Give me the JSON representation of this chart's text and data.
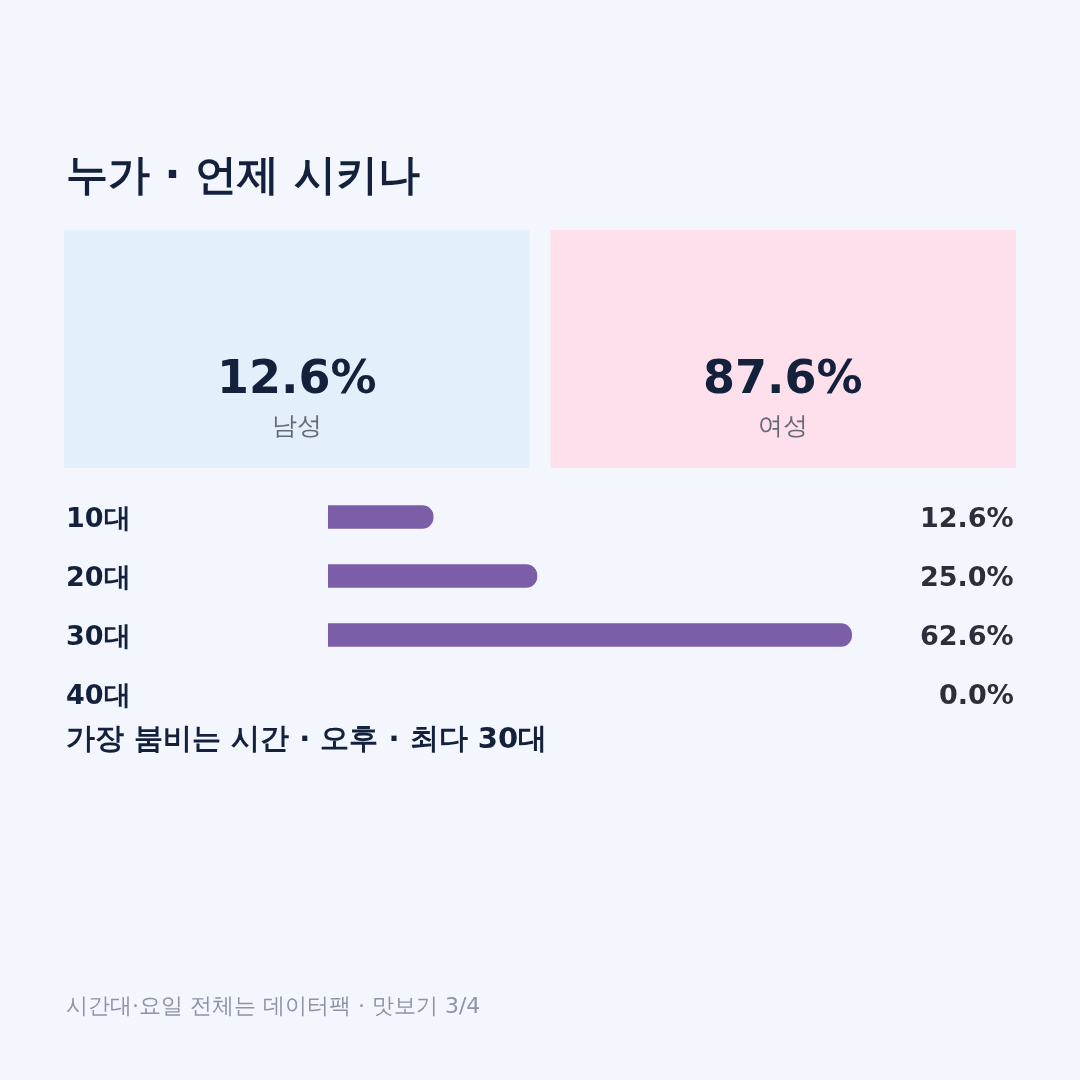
{
  "chart_data": [
    {
      "type": "other",
      "title": "누가 · 언제 시키나",
      "annotations": [
        "12.6%",
        "남성",
        "87.6%",
        "여성"
      ],
      "colors": [
        "#e3f0fb",
        "#fde0ec"
      ]
    },
    {
      "type": "bar",
      "orientation": "horizontal",
      "categories": [
        "10대",
        "20대",
        "30대",
        "40대"
      ],
      "values": [
        12.6,
        25.0,
        62.6,
        0.0
      ],
      "value_labels": [
        "12.6%",
        "25.0%",
        "62.6%",
        "0.0%"
      ],
      "color": "#7b5ea7",
      "grid": false,
      "legend": false,
      "annotations": [
        "가장 붐비는 시간 · 오후 · 최다 30대",
        "시간대·요일 전체는 데이터팩 · 맛보기 3/4"
      ]
    }
  ]
}
